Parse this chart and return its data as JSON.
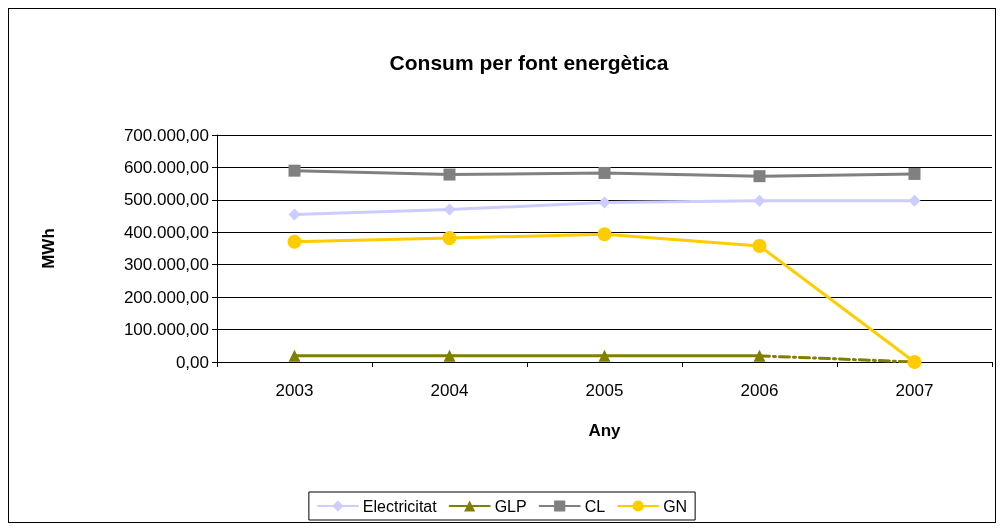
{
  "chart_data": {
    "type": "line",
    "title": "Consum per font energètica",
    "xlabel": "Any",
    "ylabel": "MWh",
    "categories": [
      "2003",
      "2004",
      "2005",
      "2006",
      "2007"
    ],
    "series": [
      {
        "name": "Electricitat",
        "color": "#ccccff",
        "marker": "diamond",
        "values": [
          455000,
          470000,
          492000,
          497000,
          497000
        ]
      },
      {
        "name": "GLP",
        "color": "#808000",
        "marker": "triangle",
        "values": [
          19000,
          19000,
          19000,
          19000,
          null
        ]
      },
      {
        "color": "#808000",
        "marker": "none",
        "line_style": "dashed",
        "values": [
          null,
          null,
          null,
          19000,
          0
        ]
      },
      {
        "name": "CL",
        "color": "#808080",
        "marker": "square",
        "values": [
          590000,
          578000,
          583000,
          573000,
          580000
        ]
      },
      {
        "name": "GN",
        "color": "#ffcc00",
        "marker": "circle",
        "values": [
          371000,
          382000,
          394000,
          358000,
          0
        ]
      }
    ],
    "ylim": [
      0,
      700000
    ],
    "yticks": [
      {
        "value": 0,
        "label": "0,00"
      },
      {
        "value": 100000,
        "label": "100.000,00"
      },
      {
        "value": 200000,
        "label": "200.000,00"
      },
      {
        "value": 300000,
        "label": "300.000,00"
      },
      {
        "value": 400000,
        "label": "400.000,00"
      },
      {
        "value": 500000,
        "label": "500.000,00"
      },
      {
        "value": 600000,
        "label": "600.000,00"
      },
      {
        "value": 700000,
        "label": "700.000,00"
      }
    ],
    "grid": "y",
    "legend": "bottom",
    "line_style": "solid"
  }
}
